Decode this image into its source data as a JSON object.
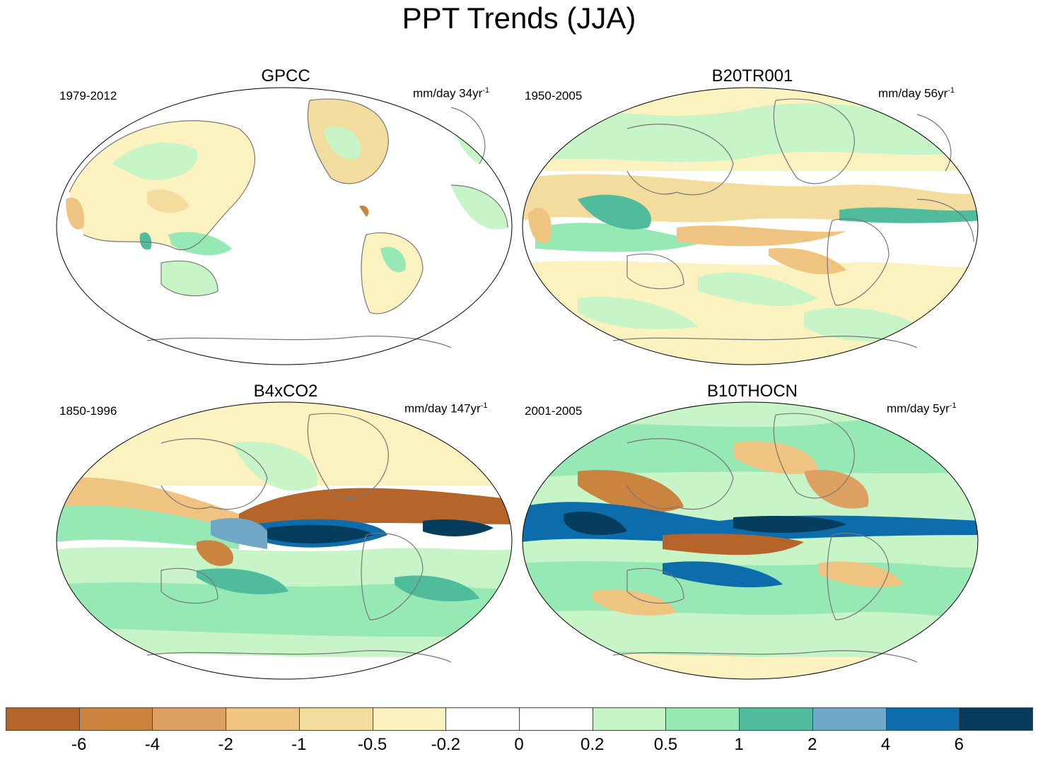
{
  "title": "PPT Trends (JJA)",
  "panels": [
    {
      "name": "GPCC",
      "period": "1979-2012",
      "units": "mm/day 34yr",
      "units_exp": "-1"
    },
    {
      "name": "B20TR001",
      "period": "1950-2005",
      "units": "mm/day 56yr",
      "units_exp": "-1"
    },
    {
      "name": "B4xCO2",
      "period": "1850-1996",
      "units": "mm/day 147yr",
      "units_exp": "-1"
    },
    {
      "name": "B10THOCN",
      "period": "2001-2005",
      "units": "mm/day 5yr",
      "units_exp": "-1"
    }
  ],
  "colorbar": {
    "colors": [
      "#b5652a",
      "#ca843f",
      "#dca060",
      "#efc480",
      "#f2dc9e",
      "#fcf2c0",
      "#ffffff",
      "#ffffff",
      "#c8f5c8",
      "#96e8b4",
      "#50bc9c",
      "#70a8c8",
      "#0c6cac",
      "#063c5c"
    ],
    "labels": [
      "-6",
      "-4",
      "-2",
      "-1",
      "-0.5",
      "-0.2",
      "0",
      "0.2",
      "0.5",
      "1",
      "2",
      "4",
      "6"
    ]
  }
}
